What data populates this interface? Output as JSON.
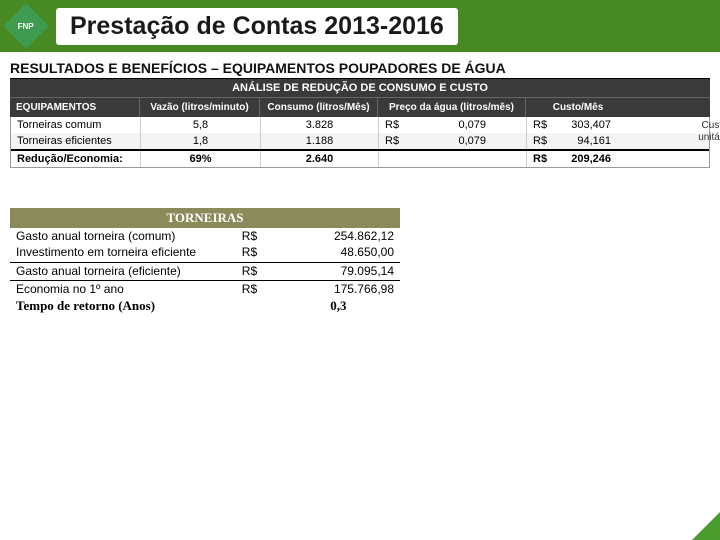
{
  "header": {
    "logo_text": "FNP",
    "title": "Prestação de Contas 2013-2016"
  },
  "subtitle": "RESULTADOS E BENEFÍCIOS – EQUIPAMENTOS POUPADORES DE ÁGUA",
  "analysis_table": {
    "title": "ANÁLISE DE REDUÇÃO DE CONSUMO E CUSTO",
    "columns": [
      "EQUIPAMENTOS",
      "Vazão (litros/minuto)",
      "Consumo (litros/Mês)",
      "Preço da água (litros/mês)",
      "Custo/Mês"
    ],
    "rows": [
      {
        "equip": "Torneiras comum",
        "flow": "5,8",
        "consumption": "3.828",
        "price_cur": "R$",
        "price_val": "0,079",
        "cost_cur": "R$",
        "cost_val": "303,407"
      },
      {
        "equip": "Torneiras eficientes",
        "flow": "1,8",
        "consumption": "1.188",
        "price_cur": "R$",
        "price_val": "0,079",
        "cost_cur": "R$",
        "cost_val": "94,161"
      }
    ],
    "footer": {
      "label": "Redução/Economia:",
      "flow": "69%",
      "consumption": "2.640",
      "price_cur": "",
      "price_val": "",
      "cost_cur": "R$",
      "cost_val": "209,246"
    }
  },
  "side_note_line1": "Custos",
  "side_note_line2": "unitários",
  "faucet_table": {
    "title": "TORNEIRAS",
    "rows": [
      {
        "label": "Gasto anual torneira (comum)",
        "cur": "R$",
        "val": "254.862,12"
      },
      {
        "label": "Investimento em torneira eficiente",
        "cur": "R$",
        "val": "48.650,00"
      }
    ],
    "rows2": [
      {
        "label": "Gasto anual torneira (eficiente)",
        "cur": "R$",
        "val": "79.095,14"
      }
    ],
    "rows3": [
      {
        "label": "Economia no 1º ano",
        "cur": "R$",
        "val": "175.766,98"
      }
    ],
    "footer": {
      "label": "Tempo de retorno (Anos)",
      "cur": "",
      "val": "0,3"
    }
  },
  "colors": {
    "header_green": "#478a23",
    "table2_header": "#8a8a5a",
    "dark": "#3a3a3a"
  }
}
